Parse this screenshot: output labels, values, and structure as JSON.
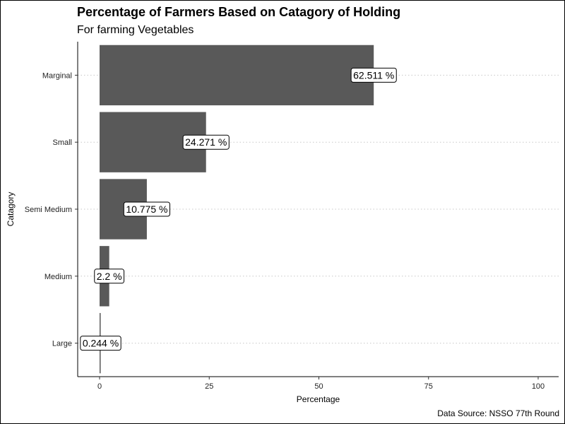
{
  "chart_data": {
    "type": "bar",
    "orientation": "horizontal",
    "title": "Percentage of Farmers Based on Catagory of Holding",
    "subtitle": "For farming Vegetables",
    "caption": "Data Source: NSSO 77th Round",
    "xlabel": "Percentage",
    "ylabel": "Catagory",
    "categories": [
      "Marginal",
      "Small",
      "Semi Medium",
      "Medium",
      "Large"
    ],
    "values": [
      62.511,
      24.271,
      10.775,
      2.2,
      0.244
    ],
    "data_labels": [
      "62.511 %",
      "24.271 %",
      "10.775 %",
      "2.2 %",
      "0.244 %"
    ],
    "xlim": [
      0,
      100
    ],
    "x_ticks": [
      0,
      25,
      50,
      75,
      100
    ],
    "grid": "horizontal dotted",
    "legend": "none",
    "bar_color": "#595959"
  }
}
